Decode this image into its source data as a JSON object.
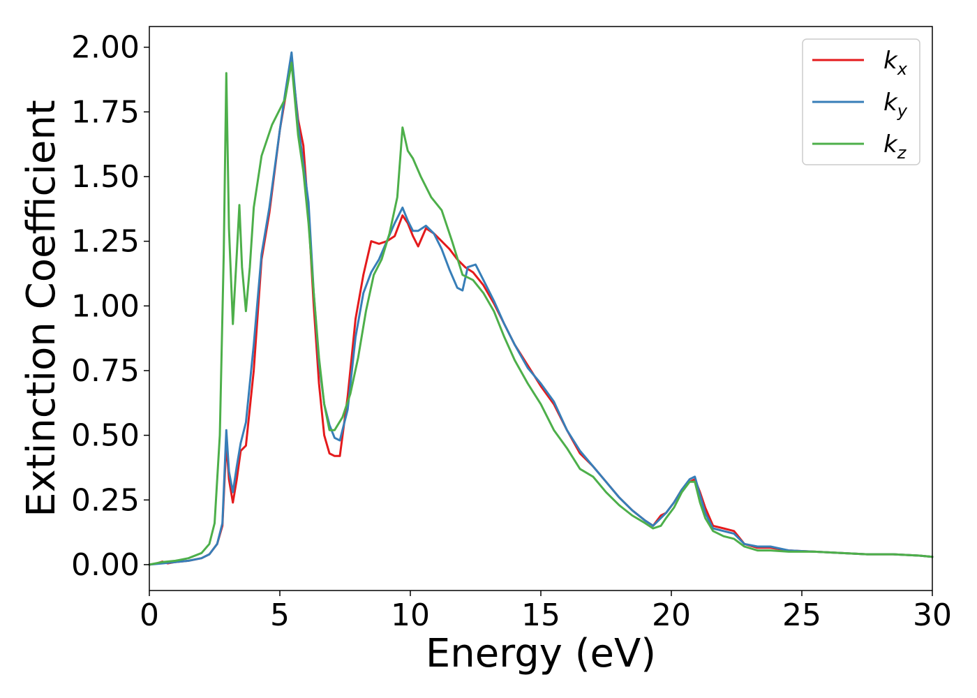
{
  "chart_data": {
    "type": "line",
    "title": "",
    "xlabel": "Energy (eV)",
    "ylabel": "Extinction Coefficient",
    "xlim": [
      0,
      30
    ],
    "ylim": [
      -0.1,
      2.08
    ],
    "xticks": [
      0,
      5,
      10,
      15,
      20,
      25,
      30
    ],
    "xtick_labels": [
      "0",
      "5",
      "10",
      "15",
      "20",
      "25",
      "30"
    ],
    "yticks": [
      0.0,
      0.25,
      0.5,
      0.75,
      1.0,
      1.25,
      1.5,
      1.75,
      2.0
    ],
    "ytick_labels": [
      "0.00",
      "0.25",
      "0.50",
      "0.75",
      "1.00",
      "1.25",
      "1.50",
      "1.75",
      "2.00"
    ],
    "grid": false,
    "legend_position": "top-right",
    "series": [
      {
        "name": "k",
        "subscript": "x",
        "color": "#e41a1c",
        "x": [
          0,
          0.3,
          0.5,
          0.7,
          1.0,
          1.5,
          2.0,
          2.3,
          2.6,
          2.8,
          2.95,
          3.05,
          3.2,
          3.35,
          3.5,
          3.7,
          4.0,
          4.3,
          4.6,
          5.0,
          5.2,
          5.45,
          5.7,
          5.9,
          6.1,
          6.3,
          6.5,
          6.7,
          6.9,
          7.1,
          7.3,
          7.6,
          7.9,
          8.2,
          8.5,
          8.8,
          9.1,
          9.4,
          9.7,
          9.9,
          10.1,
          10.3,
          10.6,
          10.9,
          11.2,
          11.5,
          11.8,
          12.1,
          12.4,
          12.8,
          13.2,
          13.6,
          14.0,
          14.5,
          15.0,
          15.5,
          16.0,
          16.5,
          17.0,
          17.5,
          18.0,
          18.5,
          19.0,
          19.3,
          19.6,
          19.8,
          20.1,
          20.4,
          20.7,
          20.9,
          21.1,
          21.3,
          21.6,
          22.0,
          22.4,
          22.8,
          23.3,
          23.8,
          24.5,
          25.5,
          26.5,
          27.5,
          28.5,
          29.5,
          30
        ],
        "y": [
          0.0,
          0.005,
          0.012,
          0.005,
          0.01,
          0.015,
          0.025,
          0.04,
          0.08,
          0.15,
          0.47,
          0.33,
          0.24,
          0.33,
          0.44,
          0.46,
          0.75,
          1.18,
          1.36,
          1.68,
          1.8,
          1.95,
          1.72,
          1.62,
          1.35,
          1.0,
          0.7,
          0.5,
          0.43,
          0.42,
          0.42,
          0.65,
          0.95,
          1.12,
          1.25,
          1.24,
          1.25,
          1.27,
          1.35,
          1.32,
          1.27,
          1.23,
          1.3,
          1.28,
          1.25,
          1.22,
          1.18,
          1.15,
          1.13,
          1.08,
          1.01,
          0.93,
          0.85,
          0.77,
          0.69,
          0.62,
          0.52,
          0.43,
          0.38,
          0.32,
          0.26,
          0.21,
          0.17,
          0.15,
          0.19,
          0.2,
          0.24,
          0.29,
          0.32,
          0.33,
          0.28,
          0.22,
          0.15,
          0.14,
          0.13,
          0.08,
          0.065,
          0.065,
          0.055,
          0.05,
          0.045,
          0.04,
          0.04,
          0.035,
          0.03
        ]
      },
      {
        "name": "k",
        "subscript": "y",
        "color": "#377eb8",
        "x": [
          0,
          0.5,
          1.0,
          1.5,
          2.0,
          2.3,
          2.6,
          2.8,
          2.95,
          3.05,
          3.2,
          3.35,
          3.5,
          3.7,
          4.0,
          4.3,
          4.6,
          5.0,
          5.2,
          5.45,
          5.7,
          5.9,
          6.1,
          6.3,
          6.5,
          6.7,
          6.9,
          7.1,
          7.3,
          7.6,
          7.9,
          8.2,
          8.5,
          8.8,
          9.1,
          9.4,
          9.7,
          9.9,
          10.1,
          10.3,
          10.6,
          10.9,
          11.2,
          11.5,
          11.8,
          12.0,
          12.2,
          12.5,
          12.8,
          13.2,
          13.6,
          14.0,
          14.5,
          15.0,
          15.5,
          16.0,
          16.5,
          17.0,
          17.5,
          18.0,
          18.5,
          19.0,
          19.3,
          19.6,
          19.8,
          20.1,
          20.4,
          20.7,
          20.9,
          21.1,
          21.3,
          21.6,
          22.0,
          22.4,
          22.8,
          23.3,
          23.8,
          24.5,
          25.5,
          26.5,
          27.5,
          28.5,
          29.5,
          30
        ],
        "y": [
          0.0,
          0.005,
          0.01,
          0.015,
          0.025,
          0.04,
          0.08,
          0.16,
          0.52,
          0.36,
          0.28,
          0.38,
          0.47,
          0.55,
          0.85,
          1.2,
          1.38,
          1.68,
          1.82,
          1.98,
          1.7,
          1.55,
          1.4,
          1.05,
          0.78,
          0.62,
          0.54,
          0.49,
          0.48,
          0.6,
          0.88,
          1.05,
          1.13,
          1.18,
          1.25,
          1.32,
          1.38,
          1.33,
          1.29,
          1.29,
          1.31,
          1.28,
          1.22,
          1.14,
          1.07,
          1.06,
          1.15,
          1.16,
          1.1,
          1.02,
          0.93,
          0.85,
          0.76,
          0.7,
          0.63,
          0.52,
          0.44,
          0.38,
          0.32,
          0.26,
          0.21,
          0.17,
          0.15,
          0.18,
          0.2,
          0.24,
          0.29,
          0.33,
          0.34,
          0.27,
          0.2,
          0.14,
          0.13,
          0.12,
          0.08,
          0.07,
          0.07,
          0.055,
          0.05,
          0.045,
          0.04,
          0.04,
          0.035,
          0.03
        ]
      },
      {
        "name": "k",
        "subscript": "z",
        "color": "#4daf4a",
        "x": [
          0,
          0.5,
          1.0,
          1.5,
          2.0,
          2.3,
          2.5,
          2.7,
          2.85,
          2.95,
          3.05,
          3.2,
          3.35,
          3.45,
          3.55,
          3.7,
          3.85,
          4.0,
          4.3,
          4.7,
          5.0,
          5.2,
          5.45,
          5.7,
          5.9,
          6.1,
          6.3,
          6.5,
          6.7,
          6.9,
          7.1,
          7.4,
          7.7,
          8.0,
          8.3,
          8.6,
          8.9,
          9.2,
          9.5,
          9.7,
          9.9,
          10.1,
          10.4,
          10.8,
          11.2,
          11.6,
          12.0,
          12.4,
          12.8,
          13.2,
          13.6,
          14.0,
          14.5,
          15.0,
          15.5,
          16.0,
          16.5,
          17.0,
          17.5,
          18.0,
          18.5,
          19.0,
          19.3,
          19.6,
          19.8,
          20.1,
          20.4,
          20.7,
          20.9,
          21.1,
          21.3,
          21.6,
          22.0,
          22.4,
          22.8,
          23.3,
          23.8,
          24.5,
          25.5,
          26.5,
          27.5,
          28.5,
          29.5,
          30
        ],
        "y": [
          0.0,
          0.01,
          0.015,
          0.025,
          0.045,
          0.08,
          0.16,
          0.5,
          1.2,
          1.9,
          1.3,
          0.93,
          1.2,
          1.39,
          1.15,
          0.98,
          1.15,
          1.38,
          1.58,
          1.7,
          1.76,
          1.8,
          1.94,
          1.66,
          1.52,
          1.32,
          1.05,
          0.8,
          0.62,
          0.52,
          0.52,
          0.57,
          0.66,
          0.8,
          0.98,
          1.12,
          1.18,
          1.28,
          1.42,
          1.69,
          1.6,
          1.57,
          1.5,
          1.42,
          1.37,
          1.25,
          1.12,
          1.1,
          1.05,
          0.98,
          0.88,
          0.79,
          0.7,
          0.62,
          0.52,
          0.45,
          0.37,
          0.34,
          0.28,
          0.23,
          0.19,
          0.16,
          0.14,
          0.15,
          0.18,
          0.22,
          0.28,
          0.32,
          0.32,
          0.24,
          0.18,
          0.13,
          0.11,
          0.1,
          0.07,
          0.055,
          0.055,
          0.05,
          0.05,
          0.045,
          0.04,
          0.04,
          0.035,
          0.03
        ]
      }
    ]
  }
}
